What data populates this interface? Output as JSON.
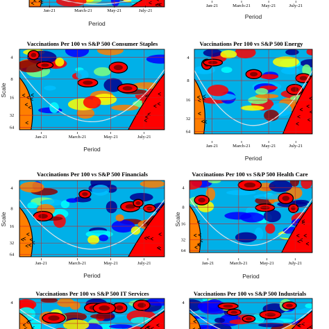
{
  "chart_data": [
    {
      "type": "heatmap",
      "title": "",
      "xlabel": "Period",
      "ylabel": "",
      "x_ticks": [
        "Jan-21",
        "March-21",
        "May-21",
        "July-21"
      ],
      "y_ticks": [],
      "partial": "top-left, only bottom edge and x-axis visible"
    },
    {
      "type": "heatmap",
      "title": "",
      "xlabel": "Period",
      "ylabel": "",
      "x_ticks": [
        "Jan-21",
        "March-21",
        "May-21",
        "July-21"
      ],
      "y_ticks": [],
      "partial": "top-right, only x-axis visible"
    },
    {
      "type": "heatmap",
      "title": "Vaccinations Per 100 vs S&P 500 Consumer Staples",
      "xlabel": "Period",
      "ylabel": "Scale",
      "x_ticks": [
        "Jan-21",
        "March-21",
        "May-21",
        "July-21"
      ],
      "y_ticks": [
        "4",
        "8",
        "16",
        "32",
        "64"
      ]
    },
    {
      "type": "heatmap",
      "title": "Vaccinations Per 100 vs S&P 500 Energy",
      "xlabel": "Period",
      "ylabel": "",
      "x_ticks": [
        "Jan-21",
        "March-21",
        "May-21",
        "July-21"
      ],
      "y_ticks": [
        "4",
        "8",
        "16",
        "32",
        "64"
      ]
    },
    {
      "type": "heatmap",
      "title": "Vaccinations Per 100 vs S&P 500 Financials",
      "xlabel": "Period",
      "ylabel": "Scale",
      "x_ticks": [
        "Jan-21",
        "March-21",
        "May-21",
        "July-21"
      ],
      "y_ticks": [
        "4",
        "8",
        "16",
        "32",
        "64"
      ]
    },
    {
      "type": "heatmap",
      "title": "Vaccinations Per 100 vs S&P 500 Health Care",
      "xlabel": "Period",
      "ylabel": "Scale",
      "x_ticks": [
        "Jan-21",
        "March-21",
        "May-21",
        "July-21"
      ],
      "y_ticks": [
        "4",
        "8",
        "16",
        "32",
        "64"
      ]
    },
    {
      "type": "heatmap",
      "title": "Vaccinations Per 100 vs S&P 500 IT Services",
      "xlabel": "",
      "ylabel": "",
      "x_ticks": [],
      "y_ticks": [
        "4"
      ],
      "partial": "bottom-left, cut off below the 4 tick"
    },
    {
      "type": "heatmap",
      "title": "Vaccinations Per 100 vs S&P 500 Industrials",
      "xlabel": "",
      "ylabel": "",
      "x_ticks": [],
      "y_ticks": [
        "4"
      ],
      "partial": "bottom-right, cut off below the 4 tick"
    }
  ],
  "colors": {
    "colormap": [
      "#00008f",
      "#0000ff",
      "#00bfff",
      "#00ffff",
      "#7fff7f",
      "#ffff00",
      "#ff7f00",
      "#ff0000",
      "#8b0000"
    ],
    "background": "#00b0e8",
    "contour": "#000000",
    "grid": "#cc2222",
    "cone": "#e8e8e8"
  }
}
